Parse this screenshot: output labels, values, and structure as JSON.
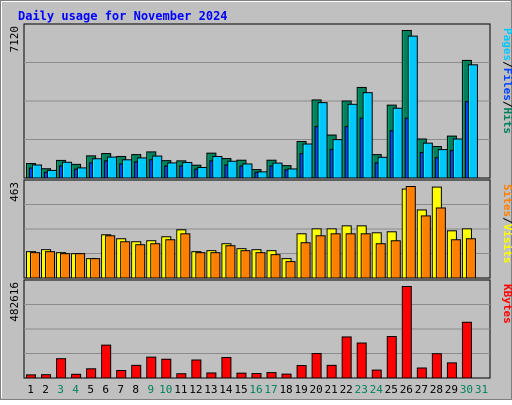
{
  "chart_data": {
    "type": "bar",
    "title": "Daily usage for November 2024",
    "colors": {
      "background": "#C0C0C0",
      "border": "#000000",
      "title": "#0000FF",
      "grid": "#8C8C8C",
      "hits": "#00805C",
      "files": "#0040FF",
      "pages": "#00C8FF",
      "visits": "#FF8000",
      "sites": "#FFFF00",
      "kbytes": "#FF0000",
      "weekday_label": "#000000",
      "weekend_label": "#00805C"
    },
    "x": {
      "days": [
        "1",
        "2",
        "3",
        "4",
        "5",
        "6",
        "7",
        "8",
        "9",
        "10",
        "11",
        "12",
        "13",
        "14",
        "15",
        "16",
        "17",
        "18",
        "19",
        "20",
        "21",
        "22",
        "23",
        "24",
        "25",
        "26",
        "27",
        "28",
        "29",
        "30",
        "31"
      ],
      "weekend": [
        false,
        false,
        true,
        true,
        false,
        false,
        false,
        false,
        true,
        true,
        false,
        false,
        false,
        false,
        false,
        true,
        true,
        false,
        false,
        false,
        false,
        false,
        true,
        true,
        false,
        false,
        false,
        false,
        false,
        true,
        true
      ]
    },
    "panels": [
      {
        "id": "top",
        "scale_label": "7120",
        "ymax": 7120,
        "legend": [
          {
            "text": "Pages",
            "key": "pages"
          },
          {
            "text": "/",
            "key": "separator"
          },
          {
            "text": "Files",
            "key": "files"
          },
          {
            "text": "/",
            "key": "separator"
          },
          {
            "text": "Hits",
            "key": "hits"
          }
        ],
        "series": [
          {
            "key": "hits",
            "values": [
              720,
              470,
              870,
              680,
              1090,
              1200,
              1060,
              1150,
              1280,
              860,
              850,
              640,
              1220,
              960,
              880,
              430,
              880,
              620,
              1780,
              3780,
              2090,
              3730,
              4380,
              1150,
              3530,
              7120,
              1900,
              1540,
              2040,
              5680,
              0
            ]
          },
          {
            "key": "files",
            "values": [
              500,
              300,
              600,
              450,
              750,
              850,
              700,
              800,
              900,
              600,
              600,
              450,
              850,
              650,
              600,
              300,
              600,
              420,
              1200,
              2500,
              1400,
              2500,
              2900,
              750,
              2300,
              2900,
              1250,
              1000,
              1350,
              3700,
              0
            ]
          },
          {
            "key": "pages",
            "values": [
              650,
              390,
              780,
              510,
              950,
              1030,
              900,
              990,
              1080,
              750,
              770,
              530,
              1060,
              830,
              700,
              320,
              740,
              460,
              1660,
              3650,
              1870,
              3570,
              4130,
              1020,
              3380,
              6850,
              1700,
              1390,
              1900,
              5470,
              0
            ]
          }
        ]
      },
      {
        "id": "middle",
        "scale_label": "463",
        "ymax": 463,
        "legend": [
          {
            "text": "Sites",
            "key": "visits"
          },
          {
            "text": "/",
            "key": "separator"
          },
          {
            "text": "Visits",
            "key": "sites"
          }
        ],
        "series": [
          {
            "key": "sites",
            "values": [
              135,
              145,
              130,
              125,
              100,
              220,
              200,
              185,
              190,
              210,
              245,
              135,
              140,
              175,
              150,
              145,
              140,
              100,
              225,
              250,
              250,
              265,
              265,
              230,
              235,
              450,
              345,
              460,
              240,
              250,
              0
            ]
          },
          {
            "key": "visits",
            "values": [
              130,
              135,
              125,
              125,
              100,
              215,
              185,
              170,
              175,
              195,
              225,
              130,
              130,
              165,
              140,
              130,
              120,
              85,
              180,
              215,
              225,
              225,
              225,
              175,
              190,
              463,
              315,
              355,
              195,
              200,
              0
            ]
          }
        ]
      },
      {
        "id": "bottom",
        "scale_label": "482616",
        "ymax": 482616,
        "legend": [
          {
            "text": "KBytes",
            "key": "kbytes"
          }
        ],
        "series": [
          {
            "key": "kbytes",
            "values": [
              19000,
              20000,
              104000,
              22000,
              51000,
              175000,
              42000,
              69000,
              112000,
              101000,
              25000,
              97000,
              29000,
              110000,
              28000,
              26000,
              31000,
              23000,
              68000,
              131000,
              69000,
              218000,
              186000,
              44000,
              220000,
              482616,
              55000,
              130000,
              82000,
              295000,
              0
            ]
          }
        ]
      }
    ]
  }
}
